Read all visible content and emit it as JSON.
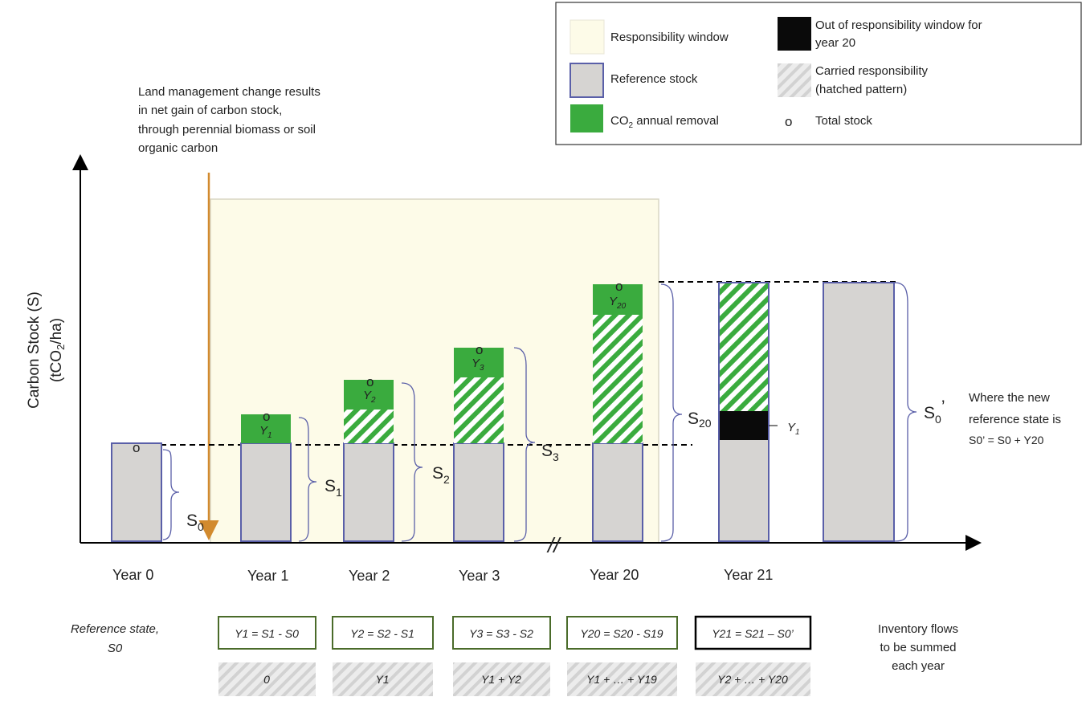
{
  "legend": {
    "responsibility_window": "Responsibility window",
    "out_of_window_line1": "Out of responsibility window for",
    "out_of_window_line2": "year 20",
    "reference_stock": "Reference stock",
    "carried_line1": "Carried responsibility",
    "carried_line2": "(hatched pattern)",
    "annual_removal_prefix": "CO",
    "annual_removal_sub": "2",
    "annual_removal_suffix": " annual removal",
    "total_stock_symbol": "o",
    "total_stock": "Total stock"
  },
  "annotation": {
    "line1": "Land management change results",
    "line2": "in net gain of carbon stock,",
    "line3": "through perennial biomass or soil",
    "line4": "organic carbon"
  },
  "axis": {
    "ylabel_line1": "Carbon Stock (S)",
    "ylabel_line2_pre": "(tCO",
    "ylabel_line2_sub": "2",
    "ylabel_line2_post": "/ha)",
    "break_mark": "//"
  },
  "years": [
    "Year 0",
    "Year 1",
    "Year 2",
    "Year 3",
    "Year 20",
    "Year 21"
  ],
  "total_marker": "o",
  "removal_labels": [
    {
      "base": "Y",
      "sub": "1"
    },
    {
      "base": "Y",
      "sub": "2"
    },
    {
      "base": "Y",
      "sub": "3"
    },
    {
      "base": "Y",
      "sub": "20"
    }
  ],
  "y1_black_label": {
    "base": "Y",
    "sub": "1"
  },
  "stock_labels": [
    {
      "base": "S",
      "sub": "0"
    },
    {
      "base": "S",
      "sub": "1"
    },
    {
      "base": "S",
      "sub": "2"
    },
    {
      "base": "S",
      "sub": "3"
    },
    {
      "base": "S",
      "sub": "20"
    }
  ],
  "new_reference": {
    "label_base": "S",
    "label_sub": "0",
    "label_prime": "’",
    "note_line1": "Where the new",
    "note_line2": "reference state is",
    "note_line3": "S0’ = S0 + Y20"
  },
  "reference_state": {
    "line1": "Reference state,",
    "line2": "S0"
  },
  "equations": [
    "Y1 = S1 - S0",
    "Y2 = S2 - S1",
    "Y3 = S3 - S2",
    "Y20 = S20 - S19",
    "Y21 = S21 – S0’"
  ],
  "sums": [
    "0",
    "Y1",
    "Y1 + Y2",
    "Y1 + … + Y19",
    "Y2 + … + Y20"
  ],
  "inventory_note": {
    "line1": "Inventory flows",
    "line2": "to be summed",
    "line3": "each year"
  },
  "colors": {
    "window_fill": "#fdfbe8",
    "window_border": "#d8d6c4",
    "reference_fill": "#d6d4d2",
    "reference_border": "#5a5fa8",
    "removal_fill": "#3aab3e",
    "hatch_color": "#3aab3e",
    "black_block": "#0a0a0a",
    "arrow_orange": "#d28a2e",
    "equation_border_green": "#4a6b2a",
    "sum_hatch": "#d9d9d9"
  }
}
